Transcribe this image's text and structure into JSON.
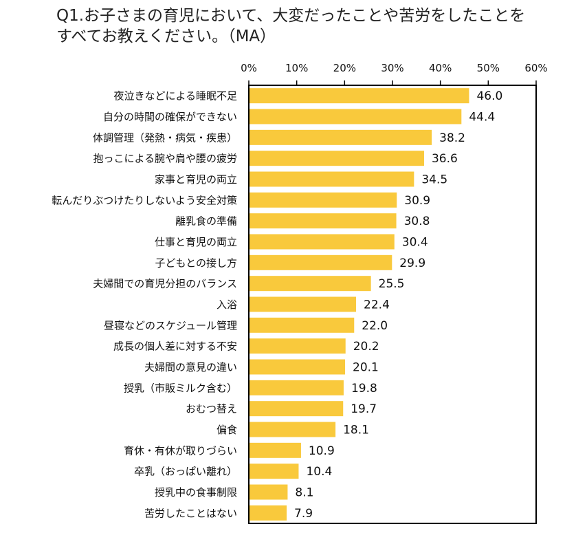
{
  "title_lines": [
    "Q1.お子さまの育児において、大変だったことや苦労をしたことを",
    "すべてお教えください。（MA）"
  ],
  "colors": {
    "bar": "#F9C93C",
    "frame": "#000000"
  },
  "chart_data": {
    "type": "bar",
    "orientation": "horizontal",
    "title": "Q1.お子さまの育児において、大変だったことや苦労をしたことをすべてお教えください。（MA）",
    "xlabel": "",
    "ylabel": "",
    "xlim": [
      0,
      60
    ],
    "xticks": [
      0,
      10,
      20,
      30,
      40,
      50,
      60
    ],
    "tick_suffix": "%",
    "grid": false,
    "categories": [
      "夜泣きなどによる睡眠不足",
      "自分の時間の確保ができない",
      "体調管理（発熱・病気・疾患）",
      "抱っこによる腕や肩や腰の疲労",
      "家事と育児の両立",
      "転んだりぶつけたりしないよう安全対策",
      "離乳食の準備",
      "仕事と育児の両立",
      "子どもとの接し方",
      "夫婦間での育児分担のバランス",
      "入浴",
      "昼寝などのスケジュール管理",
      "成長の個人差に対する不安",
      "夫婦間の意見の違い",
      "授乳（市販ミルク含む）",
      "おむつ替え",
      "偏食",
      "育休・有休が取りづらい",
      "卒乳（おっぱい離れ）",
      "授乳中の食事制限",
      "苦労したことはない"
    ],
    "values": [
      46.0,
      44.4,
      38.2,
      36.6,
      34.5,
      30.9,
      30.8,
      30.4,
      29.9,
      25.5,
      22.4,
      22.0,
      20.2,
      20.1,
      19.8,
      19.7,
      18.1,
      10.9,
      10.4,
      8.1,
      7.9
    ],
    "value_labels": [
      "46.0",
      "44.4",
      "38.2",
      "36.6",
      "34.5",
      "30.9",
      "30.8",
      "30.4",
      "29.9",
      "25.5",
      "22.4",
      "22.0",
      "20.2",
      "20.1",
      "19.8",
      "19.7",
      "18.1",
      "10.9",
      "10.4",
      "8.1",
      "7.9"
    ]
  }
}
